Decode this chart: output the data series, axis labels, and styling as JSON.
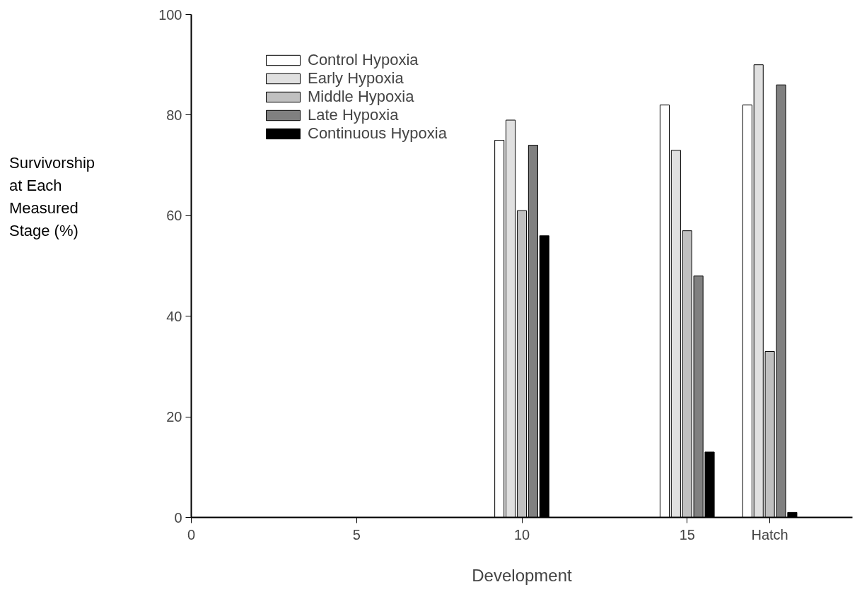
{
  "chart_data": {
    "type": "bar",
    "xlabel": "Development",
    "ylabel": "Survivorship at Each Measured Stage (%)",
    "x": [
      10,
      15,
      17.5
    ],
    "series": [
      {
        "name": "Control Hypoxia",
        "color": "#ffffff",
        "values": [
          75,
          82,
          82
        ]
      },
      {
        "name": "Early Hypoxia",
        "color": "#e0e0e0",
        "values": [
          79,
          73,
          90
        ]
      },
      {
        "name": "Middle Hypoxia",
        "color": "#c0c0c0",
        "values": [
          61,
          57,
          33
        ]
      },
      {
        "name": "Late Hypoxia",
        "color": "#808080",
        "values": [
          74,
          48,
          86
        ]
      },
      {
        "name": "Continuous Hypoxia",
        "color": "#000000",
        "values": [
          56,
          13,
          1
        ]
      }
    ],
    "xlim": [
      0,
      20
    ],
    "xticks": [
      0,
      5,
      10,
      15,
      {
        "value": 17.5,
        "label": "Hatch"
      }
    ],
    "ylim": [
      0,
      100
    ],
    "yticks": [
      0,
      20,
      40,
      60,
      80,
      100
    ],
    "grid": false,
    "legend": "top left"
  }
}
